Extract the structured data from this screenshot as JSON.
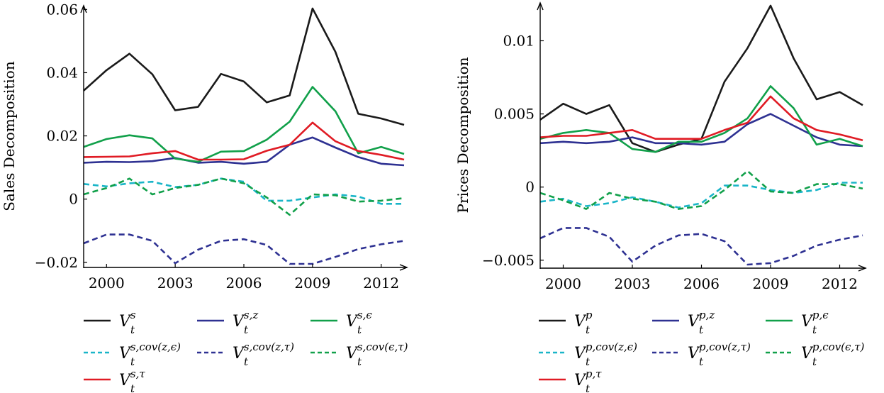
{
  "chart_data": [
    {
      "type": "line",
      "ylabel": "Sales Decomposition",
      "x": [
        1999,
        2000,
        2001,
        2002,
        2003,
        2004,
        2005,
        2006,
        2007,
        2008,
        2009,
        2010,
        2011,
        2012,
        2013
      ],
      "xticks": [
        2000,
        2003,
        2006,
        2009,
        2012
      ],
      "xtick_labels": [
        "2000",
        "2003",
        "2006",
        "2009",
        "2012"
      ],
      "yticks": [
        -0.02,
        0,
        0.02,
        0.04,
        0.06
      ],
      "ytick_labels": [
        "−0.02",
        "0",
        "0.02",
        "0.04",
        "0.06"
      ],
      "xlim": [
        1999,
        2013
      ],
      "ylim": [
        -0.0205,
        0.0603
      ],
      "series": [
        {
          "name": "V_t^s",
          "label_base": "V",
          "label_sup": "s",
          "label_sub": "t",
          "color": "#1a1a1a",
          "dash": "solid",
          "values": [
            0.0343,
            0.0408,
            0.046,
            0.0395,
            0.0281,
            0.0292,
            0.0396,
            0.0372,
            0.0306,
            0.0328,
            0.0603,
            0.0466,
            0.027,
            0.0255,
            0.0235
          ]
        },
        {
          "name": "V_t^{s,z}",
          "label_base": "V",
          "label_sup": "s,z",
          "label_sub": "t",
          "color": "#2e3192",
          "dash": "solid",
          "values": [
            0.0115,
            0.0118,
            0.0117,
            0.012,
            0.013,
            0.0115,
            0.0118,
            0.0112,
            0.0118,
            0.0172,
            0.0195,
            0.0163,
            0.0133,
            0.0112,
            0.0107
          ]
        },
        {
          "name": "V_t^{s,ε}",
          "label_base": "V",
          "label_sup": "s,ϵ",
          "label_sub": "t",
          "color": "#11a04a",
          "dash": "solid",
          "values": [
            0.0165,
            0.019,
            0.0202,
            0.0192,
            0.0128,
            0.0118,
            0.015,
            0.0152,
            0.0188,
            0.0245,
            0.0355,
            0.0278,
            0.0145,
            0.0165,
            0.0143
          ]
        },
        {
          "name": "V_t^{s,cov(z,ε)}",
          "label_base": "V",
          "label_sup": "s,cov(z,ϵ)",
          "label_sub": "t",
          "color": "#1ab5c8",
          "dash": "dashed",
          "values": [
            0.0048,
            0.004,
            0.005,
            0.0055,
            0.0038,
            0.0045,
            0.0065,
            0.0055,
            -0.0005,
            -0.0005,
            0.0005,
            0.0015,
            0.0008,
            -0.0015,
            -0.0015
          ]
        },
        {
          "name": "V_t^{s,cov(z,τ)}",
          "label_base": "V",
          "label_sup": "s,cov(z,τ)",
          "label_sub": "t",
          "color": "#2e3192",
          "dash": "dashed",
          "values": [
            -0.014,
            -0.0112,
            -0.0112,
            -0.0132,
            -0.0203,
            -0.016,
            -0.0132,
            -0.0127,
            -0.0145,
            -0.0205,
            -0.0205,
            -0.0183,
            -0.0158,
            -0.0143,
            -0.0132
          ]
        },
        {
          "name": "V_t^{s,cov(ε,τ)}",
          "label_base": "V",
          "label_sup": "s,cov(ϵ,τ)",
          "label_sub": "t",
          "color": "#11a04a",
          "dash": "dashed",
          "values": [
            0.0015,
            0.0035,
            0.0065,
            0.0015,
            0.0035,
            0.0045,
            0.0065,
            0.005,
            0.0005,
            -0.005,
            0.0015,
            0.0012,
            -0.0008,
            -0.0005,
            0.0003
          ]
        },
        {
          "name": "V_t^{s,τ}",
          "label_base": "V",
          "label_sup": "s,τ",
          "label_sub": "t",
          "color": "#e01b24",
          "dash": "solid",
          "values": [
            0.0133,
            0.0134,
            0.0135,
            0.0145,
            0.0152,
            0.0125,
            0.0125,
            0.0126,
            0.0153,
            0.0172,
            0.0242,
            0.0183,
            0.0152,
            0.014,
            0.0125
          ]
        }
      ]
    },
    {
      "type": "line",
      "ylabel": "Prices Decomposition",
      "x": [
        1999,
        2000,
        2001,
        2002,
        2003,
        2004,
        2005,
        2006,
        2007,
        2008,
        2009,
        2010,
        2011,
        2012,
        2013
      ],
      "xticks": [
        2000,
        2003,
        2006,
        2009,
        2012
      ],
      "xtick_labels": [
        "2000",
        "2003",
        "2006",
        "2009",
        "2012"
      ],
      "yticks": [
        -0.005,
        0,
        0.005,
        0.01
      ],
      "ytick_labels": [
        "−0.005",
        "0",
        "0.005",
        "0.01"
      ],
      "xlim": [
        1999,
        2013
      ],
      "ylim": [
        -0.0053,
        0.0124
      ],
      "series": [
        {
          "name": "V_t^p",
          "label_base": "V",
          "label_sup": "p",
          "label_sub": "t",
          "color": "#1a1a1a",
          "dash": "solid",
          "values": [
            0.0046,
            0.0057,
            0.005,
            0.0056,
            0.003,
            0.0024,
            0.0029,
            0.0033,
            0.0072,
            0.0095,
            0.0124,
            0.0088,
            0.006,
            0.0065,
            0.0056
          ]
        },
        {
          "name": "V_t^{p,z}",
          "label_base": "V",
          "label_sup": "p,z",
          "label_sub": "t",
          "color": "#2e3192",
          "dash": "solid",
          "values": [
            0.003,
            0.0031,
            0.003,
            0.0031,
            0.0034,
            0.003,
            0.003,
            0.0029,
            0.0031,
            0.0043,
            0.005,
            0.0042,
            0.0034,
            0.0029,
            0.0028
          ]
        },
        {
          "name": "V_t^{p,ε}",
          "label_base": "V",
          "label_sup": "p,ϵ",
          "label_sub": "t",
          "color": "#11a04a",
          "dash": "solid",
          "values": [
            0.0033,
            0.0037,
            0.0039,
            0.0037,
            0.0026,
            0.0024,
            0.0031,
            0.0031,
            0.0037,
            0.0047,
            0.0069,
            0.0054,
            0.0029,
            0.0033,
            0.0028
          ]
        },
        {
          "name": "V_t^{p,cov(z,ε)}",
          "label_base": "V",
          "label_sup": "p,cov(z,ϵ)",
          "label_sub": "t",
          "color": "#1ab5c8",
          "dash": "dashed",
          "values": [
            -0.001,
            -0.0008,
            -0.0013,
            -0.0011,
            -0.0007,
            -0.001,
            -0.0014,
            -0.0011,
            0.0001,
            0.0001,
            -0.0002,
            -0.0004,
            -0.0002,
            0.0003,
            0.0003
          ]
        },
        {
          "name": "V_t^{p,cov(z,τ)}",
          "label_base": "V",
          "label_sup": "p,cov(z,τ)",
          "label_sub": "t",
          "color": "#2e3192",
          "dash": "dashed",
          "values": [
            -0.0035,
            -0.0028,
            -0.0028,
            -0.0034,
            -0.0051,
            -0.004,
            -0.0033,
            -0.0032,
            -0.0037,
            -0.0053,
            -0.0052,
            -0.0047,
            -0.004,
            -0.0036,
            -0.0033
          ]
        },
        {
          "name": "V_t^{p,cov(ε,τ)}",
          "label_base": "V",
          "label_sup": "p,cov(ϵ,τ)",
          "label_sub": "t",
          "color": "#11a04a",
          "dash": "dashed",
          "values": [
            -0.0004,
            -0.0009,
            -0.0015,
            -0.0004,
            -0.0008,
            -0.001,
            -0.0015,
            -0.0013,
            -0.0002,
            0.0011,
            -0.0003,
            -0.0004,
            0.0002,
            0.0002,
            -0.0001
          ]
        },
        {
          "name": "V_t^{p,τ}",
          "label_base": "V",
          "label_sup": "p,τ",
          "label_sub": "t",
          "color": "#e01b24",
          "dash": "solid",
          "values": [
            0.0034,
            0.0035,
            0.0035,
            0.0037,
            0.0039,
            0.0033,
            0.0033,
            0.0033,
            0.0039,
            0.0044,
            0.0062,
            0.0047,
            0.0039,
            0.0036,
            0.0032
          ]
        }
      ]
    }
  ]
}
